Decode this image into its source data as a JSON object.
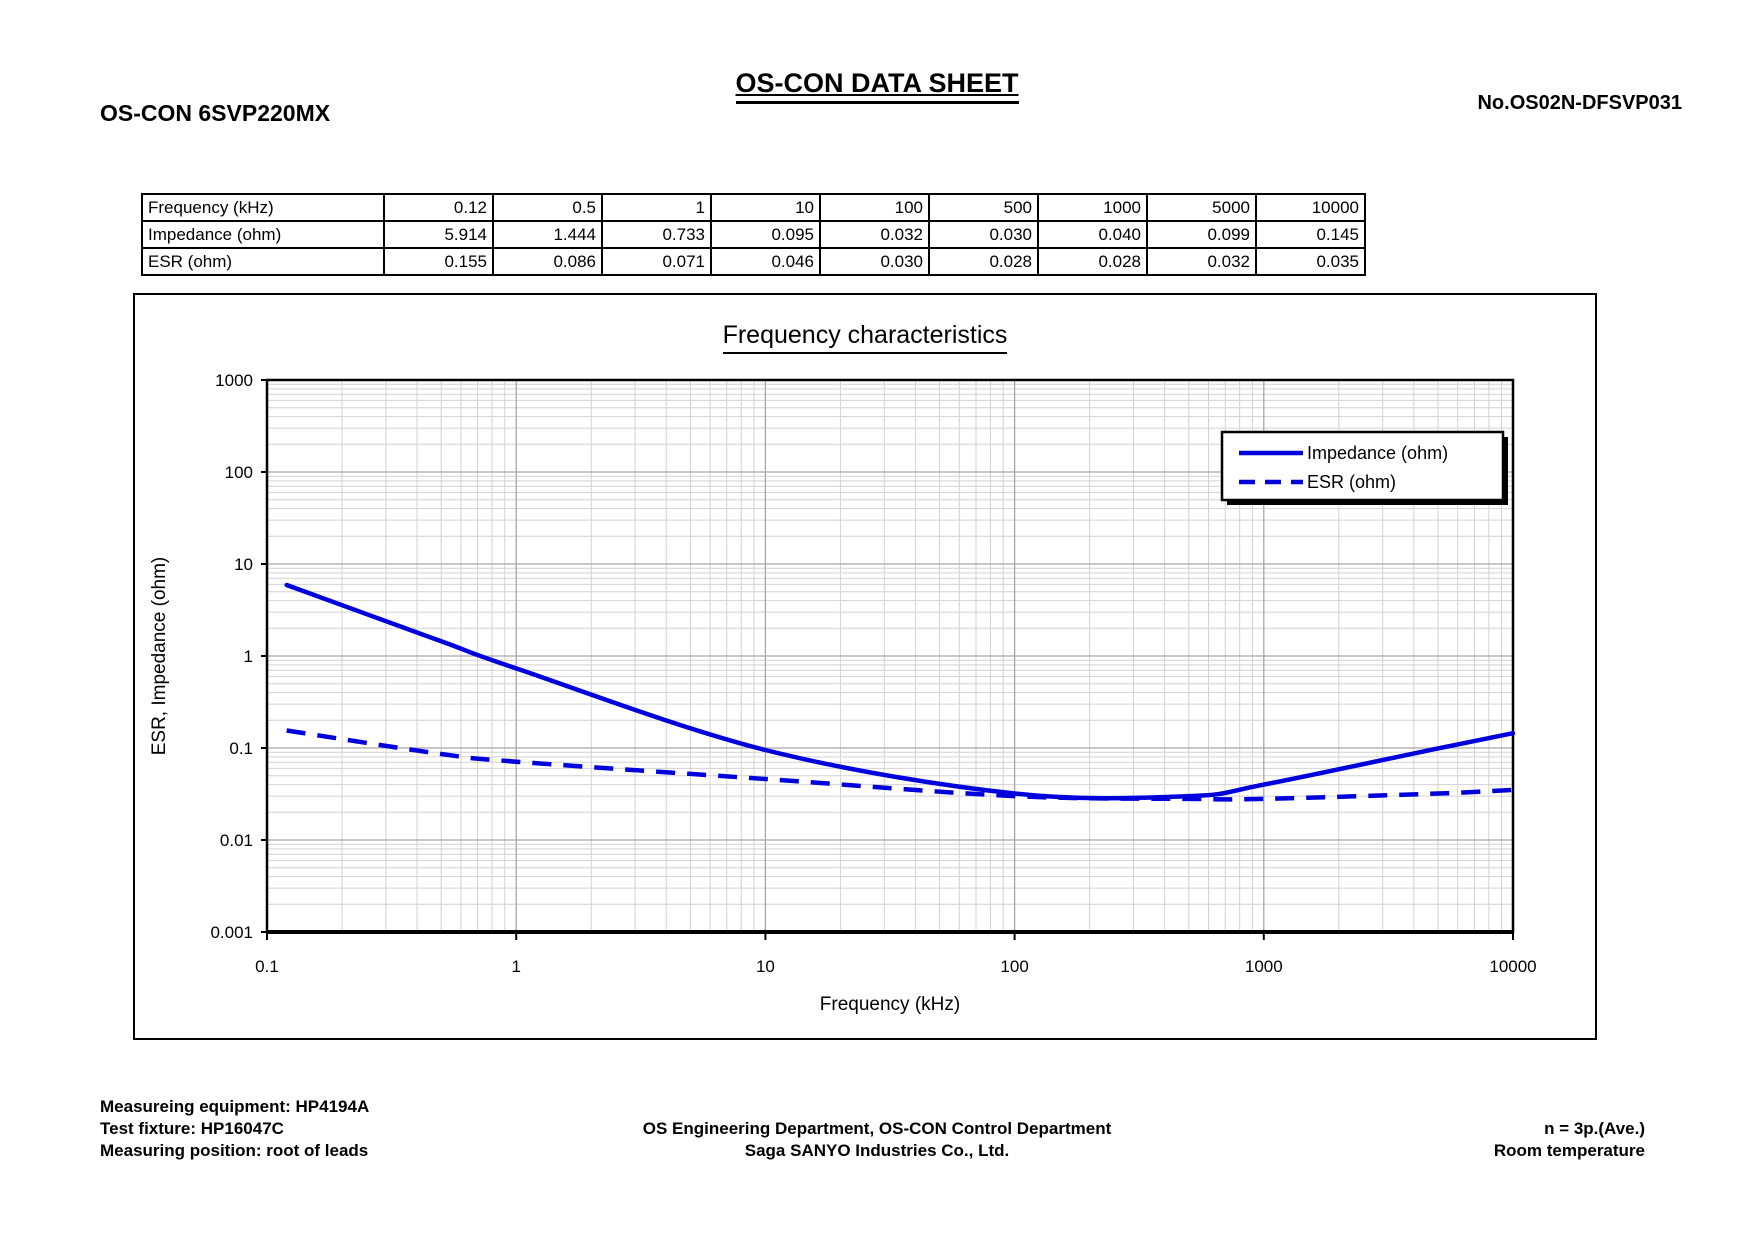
{
  "page": {
    "title": "OS-CON DATA SHEET",
    "part_number": "OS-CON 6SVP220MX",
    "doc_number": "No.OS02N-DFSVP031"
  },
  "table": {
    "rows": [
      {
        "label": "Frequency (kHz)",
        "values": [
          "0.12",
          "0.5",
          "1",
          "10",
          "100",
          "500",
          "1000",
          "5000",
          "10000"
        ]
      },
      {
        "label": "Impedance (ohm)",
        "values": [
          "5.914",
          "1.444",
          "0.733",
          "0.095",
          "0.032",
          "0.030",
          "0.040",
          "0.099",
          "0.145"
        ]
      },
      {
        "label": "ESR (ohm)",
        "values": [
          "0.155",
          "0.086",
          "0.071",
          "0.046",
          "0.030",
          "0.028",
          "0.028",
          "0.032",
          "0.035"
        ]
      }
    ]
  },
  "chart_data": {
    "type": "line",
    "title": "Frequency characteristics",
    "xlabel": "Frequency (kHz)",
    "ylabel": "ESR, Impedance (ohm)",
    "x_scale": "log",
    "y_scale": "log",
    "xlim": [
      0.1,
      10000
    ],
    "ylim": [
      0.001,
      1000
    ],
    "x_tick_labels": [
      "0.1",
      "1",
      "10",
      "100",
      "1000",
      "10000"
    ],
    "y_tick_labels": [
      "1000",
      "100",
      "10",
      "1",
      "0.1",
      "0.01",
      "0.001"
    ],
    "grid": "log major and minor gridlines, both axes",
    "legend_position": "upper-right",
    "x": [
      0.12,
      0.5,
      1,
      10,
      100,
      500,
      1000,
      5000,
      10000
    ],
    "series": [
      {
        "name": "Impedance (ohm)",
        "line_style": "solid",
        "values": [
          5.914,
          1.444,
          0.733,
          0.095,
          0.032,
          0.03,
          0.04,
          0.099,
          0.145
        ]
      },
      {
        "name": "ESR (ohm)",
        "line_style": "dashed",
        "values": [
          0.155,
          0.086,
          0.071,
          0.046,
          0.03,
          0.028,
          0.028,
          0.032,
          0.035
        ]
      }
    ]
  },
  "footer": {
    "left_lines": [
      "Measureing equipment: HP4194A",
      "Test fixture: HP16047C",
      "Measuring position: root of leads"
    ],
    "center_lines": [
      "OS Engineering Department, OS-CON Control Department",
      "Saga SANYO Industries Co., Ltd."
    ],
    "right_lines": [
      "n = 3p.(Ave.)",
      "Room temperature"
    ]
  },
  "colors": {
    "series_blue": "#0000dd",
    "grid_minor": "#d2d2d2",
    "grid_major": "#a6a6a6",
    "axis_black": "#000000"
  }
}
